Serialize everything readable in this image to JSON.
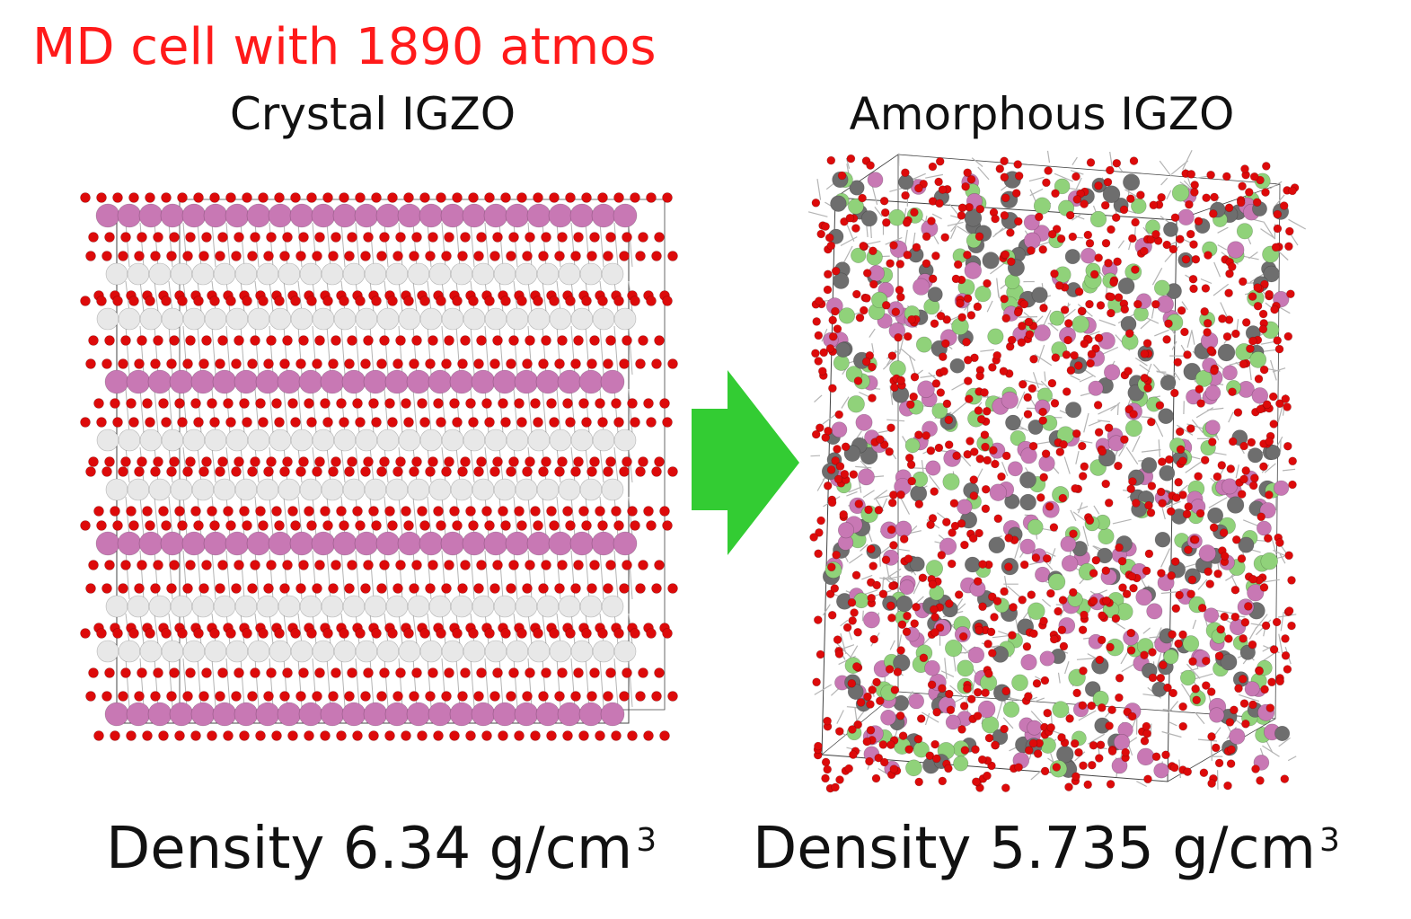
{
  "heading": "MD cell with 1890 atmos",
  "panels": [
    {
      "title": "Crystal IGZO",
      "density_label": "Density 6.34 g/cm",
      "density_unit_exponent": "3",
      "density_value": 6.34
    },
    {
      "title": "Amorphous IGZO",
      "density_label": "Density 5.735 g/cm",
      "density_unit_exponent": "3",
      "density_value": 5.735
    }
  ],
  "arrow": {
    "icon": "right-arrow-icon",
    "color": "#33cc33"
  },
  "colors": {
    "heading": "#ff1a1a",
    "oxygen": "#dd0a0a",
    "indium": "#c878b4",
    "gallium_zinc_crystal": "#e8e8e8",
    "gallium": "#90d27a",
    "zinc": "#6e6e6e",
    "bond": "#b4b4b4",
    "cell_edge": "#444444"
  }
}
